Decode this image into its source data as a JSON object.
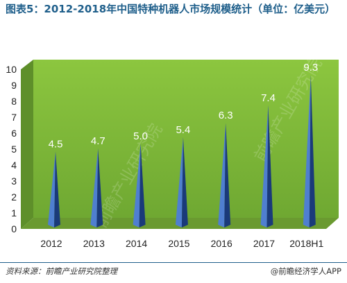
{
  "title": "图表5：2012-2018年中国特种机器人市场规模统计（单位：亿美元）",
  "source": "资料来源：前瞻产业研究院整理",
  "brand": "@前瞻经济学人APP",
  "watermark": "前瞻产业研究院",
  "colors": {
    "title": "#1f5f8b",
    "wall": "#7cb342",
    "wall_side": "#5a8a2a",
    "floor": "#6a9a30",
    "bar_light": "#4f7fd0",
    "bar_dark": "#1a3a7a"
  },
  "chart_data": {
    "type": "bar",
    "categories": [
      "2012",
      "2013",
      "2014",
      "2015",
      "2016",
      "2017",
      "2018H1"
    ],
    "values": [
      4.5,
      4.7,
      5.0,
      5.4,
      6.3,
      7.4,
      9.3
    ],
    "data_labels": [
      "4.5",
      "4.7",
      "5.0",
      "5.4",
      "6.3",
      "7.4",
      "9.3"
    ],
    "ylim": [
      0,
      10
    ],
    "yticks": [
      "0",
      "1",
      "2",
      "3",
      "4",
      "5",
      "6",
      "7",
      "8",
      "9",
      "10"
    ],
    "grid": false,
    "shape": "pyramid"
  }
}
